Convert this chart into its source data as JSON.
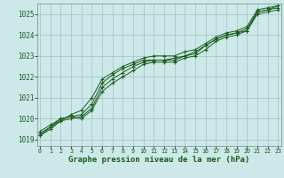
{
  "background_color": "#cce8e8",
  "grid_color": "#aac8c8",
  "line_color": "#1a5c1a",
  "marker_color": "#1a5c1a",
  "xlabel": "Graphe pression niveau de la mer (hPa)",
  "xlabel_fontsize": 6.5,
  "ytick_fontsize": 5.5,
  "xtick_fontsize": 4.8,
  "ylabel_ticks": [
    1019,
    1020,
    1021,
    1022,
    1023,
    1024,
    1025
  ],
  "xtick_labels": [
    "0",
    "1",
    "2",
    "3",
    "4",
    "5",
    "6",
    "7",
    "8",
    "9",
    "10",
    "11",
    "12",
    "13",
    "14",
    "15",
    "16",
    "17",
    "18",
    "19",
    "20",
    "21",
    "22",
    "23"
  ],
  "xticks": [
    0,
    1,
    2,
    3,
    4,
    5,
    6,
    7,
    8,
    9,
    10,
    11,
    12,
    13,
    14,
    15,
    16,
    17,
    18,
    19,
    20,
    21,
    22,
    23
  ],
  "ylim": [
    1018.7,
    1025.5
  ],
  "xlim": [
    -0.3,
    23.3
  ],
  "series": [
    [
      1019.2,
      1019.5,
      1019.9,
      1020.0,
      1020.1,
      1020.5,
      1021.5,
      1021.9,
      1022.2,
      1022.5,
      1022.7,
      1022.8,
      1022.8,
      1022.8,
      1023.0,
      1023.1,
      1023.5,
      1023.8,
      1024.0,
      1024.1,
      1024.2,
      1025.1,
      1025.2,
      1025.3
    ],
    [
      1019.3,
      1019.6,
      1020.0,
      1020.1,
      1020.0,
      1020.4,
      1021.3,
      1021.7,
      1022.0,
      1022.3,
      1022.6,
      1022.7,
      1022.7,
      1022.7,
      1022.9,
      1023.0,
      1023.3,
      1023.7,
      1023.9,
      1024.0,
      1024.2,
      1025.0,
      1025.1,
      1025.2
    ],
    [
      1019.4,
      1019.7,
      1020.0,
      1020.1,
      1020.2,
      1020.7,
      1021.7,
      1022.1,
      1022.4,
      1022.6,
      1022.8,
      1022.8,
      1022.8,
      1022.9,
      1023.0,
      1023.2,
      1023.5,
      1023.8,
      1024.0,
      1024.1,
      1024.3,
      1025.1,
      1025.2,
      1025.4
    ],
    [
      1019.2,
      1019.6,
      1019.9,
      1020.2,
      1020.4,
      1021.0,
      1021.9,
      1022.2,
      1022.5,
      1022.7,
      1022.9,
      1023.0,
      1023.0,
      1023.0,
      1023.2,
      1023.3,
      1023.6,
      1023.9,
      1024.1,
      1024.2,
      1024.4,
      1025.2,
      1025.3,
      1025.4
    ]
  ]
}
